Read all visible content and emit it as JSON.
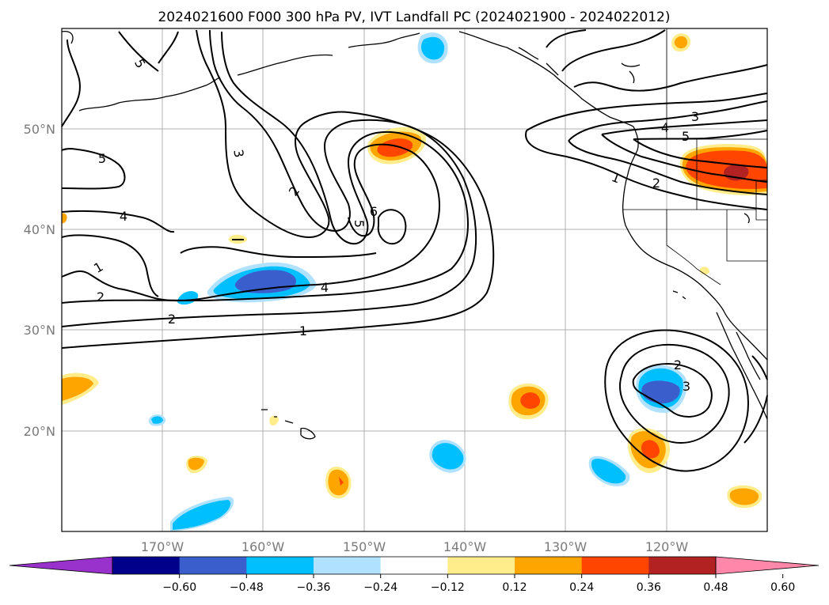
{
  "title": "2024021600 F000 300 hPa PV, IVT Landfall PC (2024021900 - 2024022012)",
  "map": {
    "lon_range": [
      -180,
      -110
    ],
    "lat_range": [
      10,
      60
    ],
    "x_ticks": [
      "170°W",
      "160°W",
      "150°W",
      "140°W",
      "130°W",
      "120°W"
    ],
    "y_ticks": [
      "50°N",
      "40°N",
      "30°N",
      "20°N"
    ],
    "gridlines": true
  },
  "colorbar": {
    "ticks": [
      "−0.60",
      "−0.48",
      "−0.36",
      "−0.24",
      "−0.12",
      "0.12",
      "0.24",
      "0.36",
      "0.48",
      "0.60"
    ],
    "colors": [
      "#9932cc",
      "#00008b",
      "#3a5fcd",
      "#00bfff",
      "#b0e2ff",
      "#ffffff",
      "#ffec8b",
      "#ffa500",
      "#ff4500",
      "#b22222",
      "#ff88aa"
    ]
  },
  "contour_labels": [
    "5",
    "3",
    "2",
    "5",
    "6",
    "5",
    "4",
    "1",
    "2",
    "4",
    "2",
    "1",
    "3",
    "4",
    "5",
    "1",
    "2",
    "2",
    "3"
  ]
}
